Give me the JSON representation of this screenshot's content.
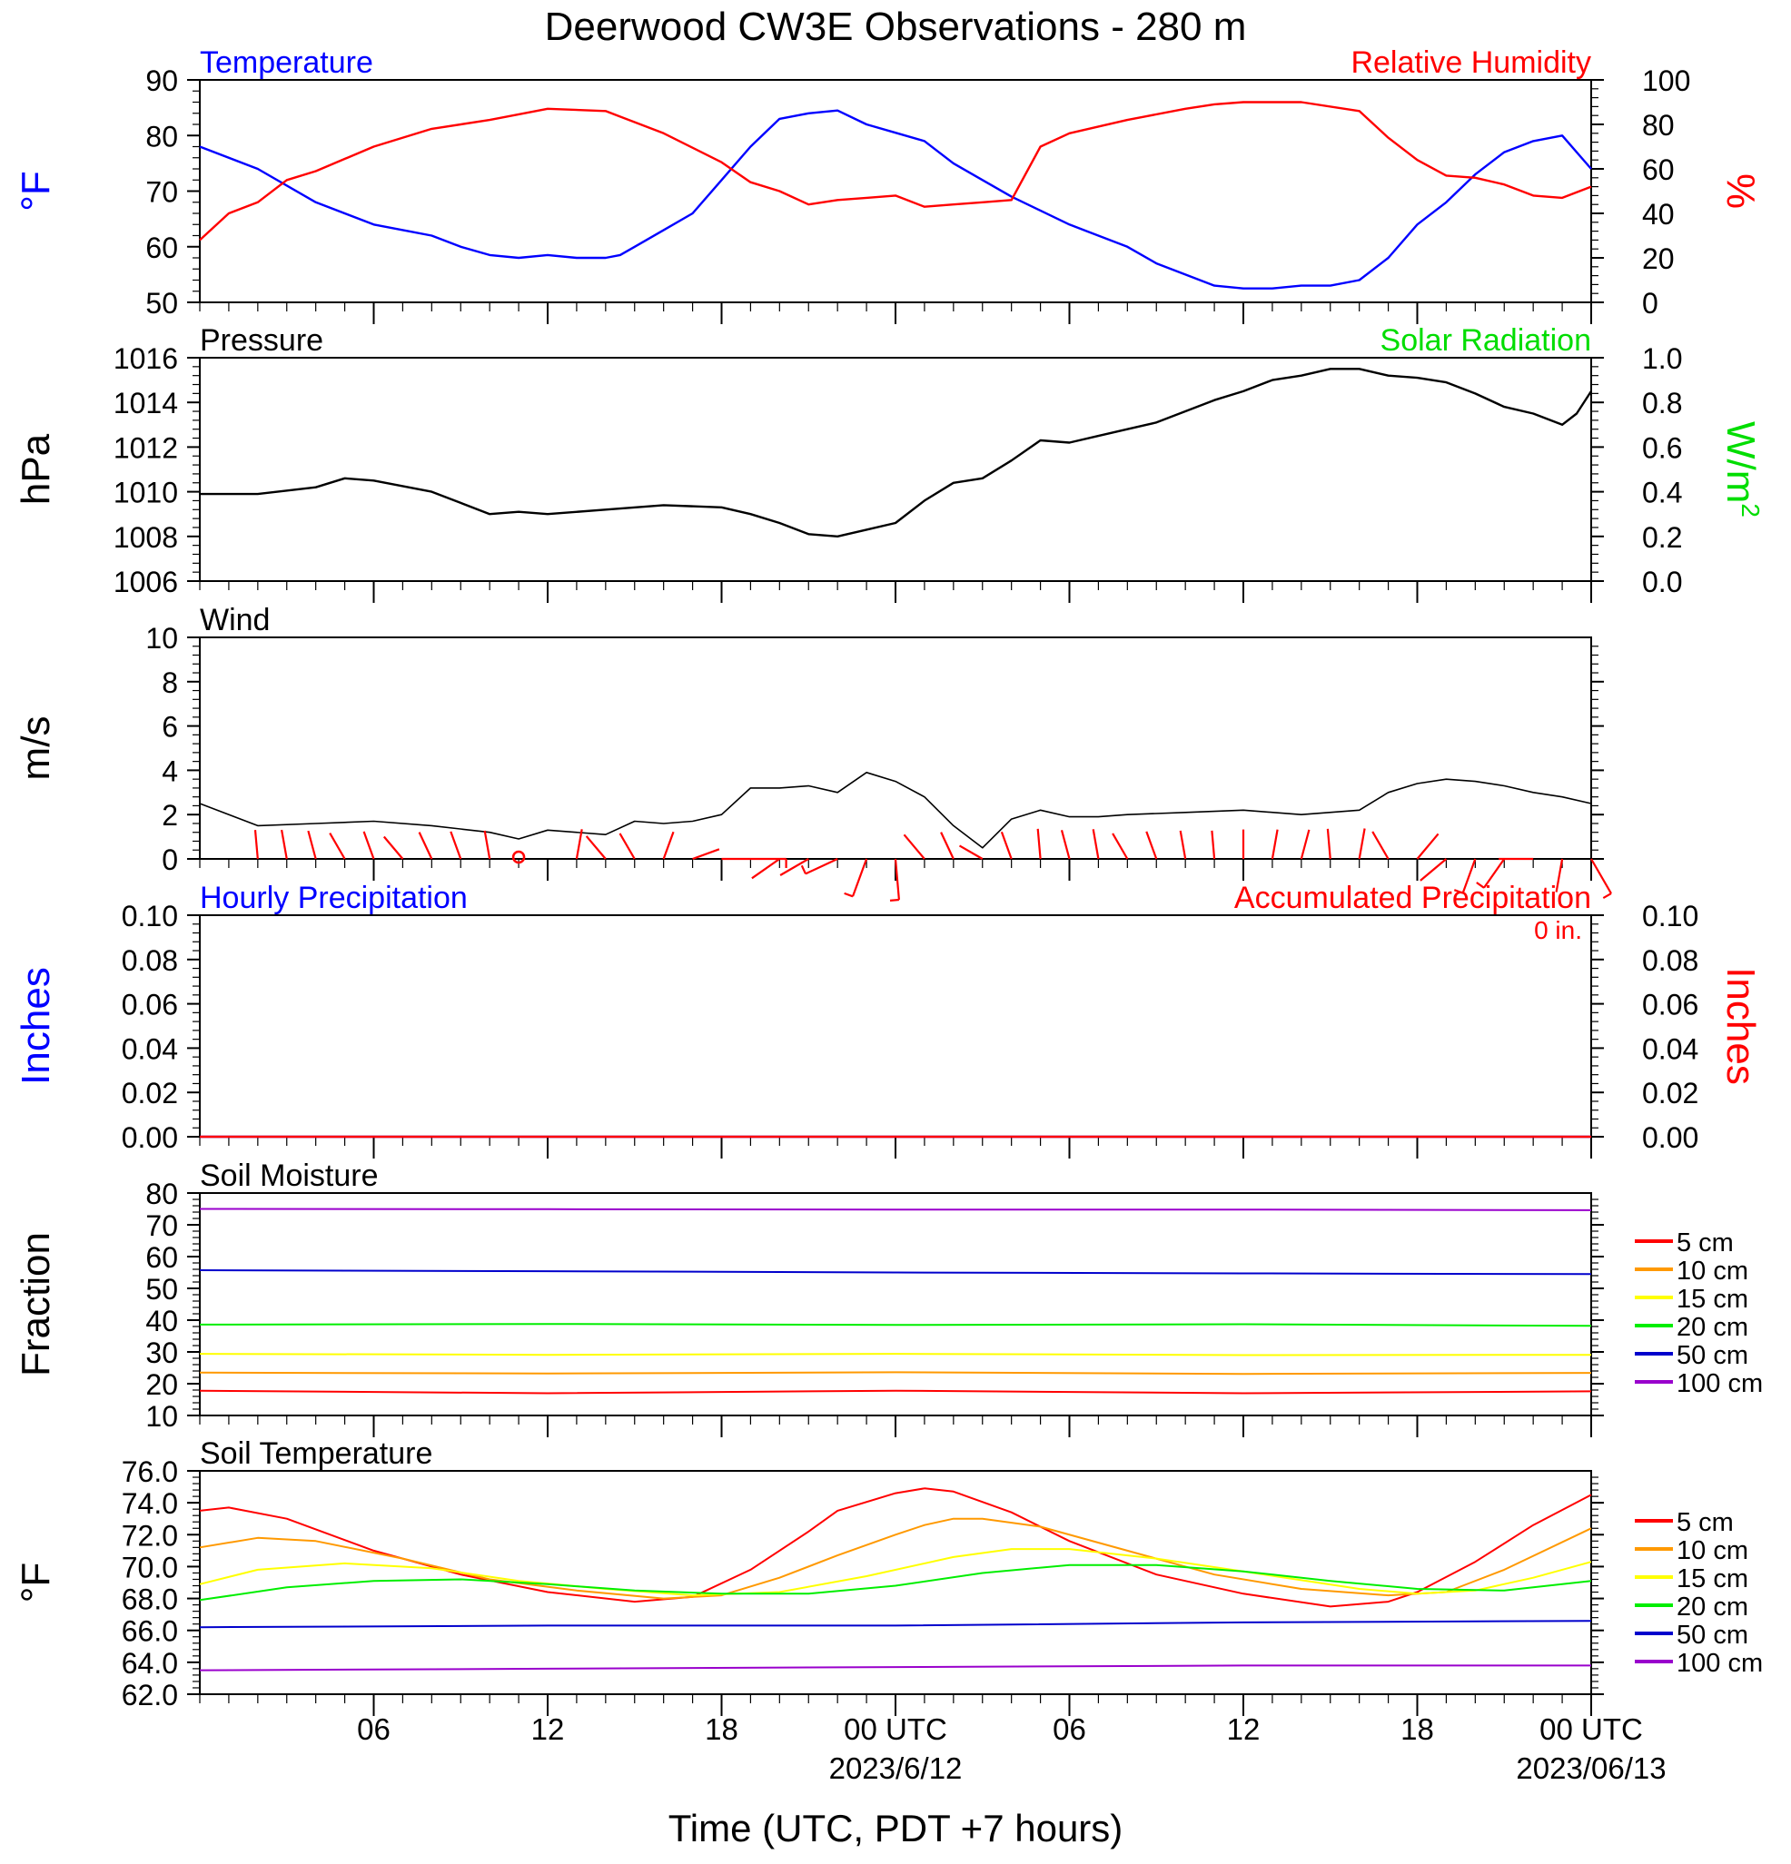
{
  "title": "Deerwood CW3E Observations - 280 m",
  "xaxis": {
    "label": "Time (UTC, PDT +7 hours)",
    "ticks": [
      {
        "hour": 6,
        "label": "06",
        "date": ""
      },
      {
        "hour": 12,
        "label": "12",
        "date": ""
      },
      {
        "hour": 18,
        "label": "18",
        "date": ""
      },
      {
        "hour": 24,
        "label": "00 UTC",
        "date": "2023/6/12"
      },
      {
        "hour": 30,
        "label": "06",
        "date": ""
      },
      {
        "hour": 36,
        "label": "12",
        "date": ""
      },
      {
        "hour": 42,
        "label": "18",
        "date": ""
      },
      {
        "hour": 48,
        "label": "00 UTC",
        "date": "2023/06/13"
      }
    ],
    "range_hours": [
      0,
      48
    ]
  },
  "colors": {
    "temperature": "#0000ff",
    "humidity": "#ff0000",
    "pressure": "#000000",
    "solar": "#00dd00",
    "wind": "#000000",
    "barbs": "#ff0000",
    "hourly_precip": "#0000ff",
    "accum_precip": "#ff0000",
    "depth_5": "#ff0000",
    "depth_10": "#ff9900",
    "depth_15": "#ffff00",
    "depth_20": "#00ee00",
    "depth_50": "#0000cc",
    "depth_100": "#9900cc"
  },
  "chart_data": [
    {
      "id": "temp-rh",
      "type": "line",
      "left_title": "Temperature",
      "right_title": "Relative Humidity",
      "ylabel": "°F",
      "ylabel_right": "%",
      "ylim": [
        50,
        90
      ],
      "ylim_right": [
        0,
        100
      ],
      "yticks": [
        "50",
        "60",
        "70",
        "80",
        "90"
      ],
      "yticks_right": [
        "0",
        "20",
        "40",
        "60",
        "80",
        "100"
      ],
      "series": [
        {
          "name": "Temperature",
          "axis": "left",
          "x": [
            0,
            2,
            4,
            6,
            8,
            9,
            10,
            11,
            12,
            13,
            14,
            14.5,
            15,
            16,
            17,
            18,
            19,
            20,
            21,
            22,
            23,
            24,
            25,
            26,
            27,
            28,
            30,
            32,
            33,
            34,
            35,
            36,
            37,
            38,
            39,
            40,
            41,
            42,
            43,
            44,
            45,
            46,
            47,
            48
          ],
          "y": [
            78,
            74,
            68,
            64,
            62,
            60,
            58.5,
            58,
            58.5,
            58,
            58,
            58.5,
            60,
            63,
            66,
            72,
            78,
            83,
            84,
            84.5,
            82,
            80.5,
            79,
            75,
            72,
            69,
            64,
            60,
            57,
            55,
            53,
            52.5,
            52.5,
            53,
            53,
            54,
            58,
            64,
            68,
            73,
            77,
            79,
            80,
            74
          ]
        },
        {
          "name": "Relative Humidity",
          "axis": "right",
          "x": [
            0,
            1,
            2,
            3,
            4,
            6,
            8,
            10,
            12,
            14,
            16,
            18,
            19,
            20,
            21,
            22,
            23,
            24,
            25,
            26,
            27,
            28,
            29,
            30,
            32,
            34,
            35,
            36,
            38,
            40,
            41,
            42,
            43,
            44,
            45,
            46,
            47,
            48
          ],
          "y": [
            28,
            40,
            45,
            55,
            59,
            70,
            78,
            82,
            87,
            86,
            76,
            63,
            54,
            50,
            44,
            46,
            47,
            48,
            43,
            44,
            45,
            46,
            70,
            76,
            82,
            87,
            89,
            90,
            90,
            86,
            74,
            64,
            57,
            56,
            53,
            48,
            47,
            52
          ]
        }
      ]
    },
    {
      "id": "pressure",
      "type": "line",
      "left_title": "Pressure",
      "right_title": "Solar Radiation",
      "ylabel": "hPa",
      "ylabel_right": "W/m",
      "ylabel_right_sup": "2",
      "ylim": [
        1006,
        1016
      ],
      "ylim_right": [
        0.0,
        1.0
      ],
      "yticks": [
        "1006",
        "1008",
        "1010",
        "1012",
        "1014",
        "1016"
      ],
      "yticks_right": [
        "0.0",
        "0.2",
        "0.4",
        "0.6",
        "0.8",
        "1.0"
      ],
      "series": [
        {
          "name": "Pressure",
          "axis": "left",
          "x": [
            0,
            2,
            4,
            5,
            6,
            8,
            9,
            10,
            11,
            12,
            14,
            16,
            18,
            19,
            20,
            21,
            22,
            23,
            24,
            25,
            26,
            27,
            28,
            29,
            30,
            31,
            32,
            33,
            34,
            35,
            36,
            37,
            38,
            39,
            40,
            41,
            42,
            43,
            44,
            45,
            46,
            47,
            47.5,
            48
          ],
          "y": [
            1009.9,
            1009.9,
            1010.2,
            1010.6,
            1010.5,
            1010,
            1009.5,
            1009,
            1009.1,
            1009,
            1009.2,
            1009.4,
            1009.3,
            1009,
            1008.6,
            1008.1,
            1008,
            1008.3,
            1008.6,
            1009.6,
            1010.4,
            1010.6,
            1011.4,
            1012.3,
            1012.2,
            1012.5,
            1012.8,
            1013.1,
            1013.6,
            1014.1,
            1014.5,
            1015,
            1015.2,
            1015.5,
            1015.5,
            1015.2,
            1015.1,
            1014.9,
            1014.4,
            1013.8,
            1013.5,
            1013,
            1013.5,
            1014.5
          ]
        }
      ]
    },
    {
      "id": "wind",
      "type": "line",
      "left_title": "Wind",
      "ylabel": "m/s",
      "ylim": [
        0,
        10
      ],
      "yticks": [
        "0",
        "2",
        "4",
        "6",
        "8",
        "10"
      ],
      "series": [
        {
          "name": "Wind",
          "axis": "left",
          "x": [
            0,
            2,
            4,
            6,
            8,
            10,
            11,
            12,
            14,
            15,
            16,
            17,
            18,
            19,
            20,
            21,
            22,
            23,
            24,
            25,
            26,
            27,
            28,
            29,
            30,
            31,
            32,
            34,
            36,
            38,
            40,
            41,
            42,
            43,
            44,
            45,
            46,
            47,
            48
          ],
          "y": [
            2.5,
            1.5,
            1.6,
            1.7,
            1.5,
            1.2,
            0.9,
            1.3,
            1.1,
            1.7,
            1.6,
            1.7,
            2,
            3.2,
            3.2,
            3.3,
            3,
            3.9,
            3.5,
            2.8,
            1.5,
            0.5,
            1.8,
            2.2,
            1.9,
            1.9,
            2.0,
            2.1,
            2.2,
            2,
            2.2,
            3,
            3.4,
            3.6,
            3.5,
            3.3,
            3,
            2.8,
            2.5
          ]
        }
      ]
    },
    {
      "id": "precip",
      "type": "line",
      "left_title": "Hourly Precipitation",
      "right_title": "Accumulated Precipitation",
      "accum_label": "0 in.",
      "ylabel": "Inches",
      "ylabel_right": "Inches",
      "ylim": [
        0,
        0.1
      ],
      "ylim_right": [
        0,
        0.1
      ],
      "yticks": [
        "0.00",
        "0.02",
        "0.04",
        "0.06",
        "0.08",
        "0.10"
      ],
      "yticks_right": [
        "0.00",
        "0.02",
        "0.04",
        "0.06",
        "0.08",
        "0.10"
      ],
      "series": [
        {
          "name": "Hourly Precipitation",
          "axis": "left",
          "x": [
            0,
            48
          ],
          "y": [
            0,
            0
          ]
        },
        {
          "name": "Accumulated Precipitation",
          "axis": "right",
          "x": [
            0,
            48
          ],
          "y": [
            0,
            0
          ]
        }
      ]
    },
    {
      "id": "soil-moisture",
      "type": "line",
      "left_title": "Soil Moisture",
      "ylabel": "Fraction",
      "ylim": [
        10,
        80
      ],
      "yticks": [
        "10",
        "20",
        "30",
        "40",
        "50",
        "60",
        "70",
        "80"
      ],
      "series": [
        {
          "name": "5 cm",
          "x": [
            0,
            12,
            24,
            36,
            48
          ],
          "y": [
            17.8,
            17,
            17.8,
            17,
            17.6
          ]
        },
        {
          "name": "10 cm",
          "x": [
            0,
            12,
            24,
            36,
            48
          ],
          "y": [
            23.5,
            23.2,
            23.6,
            23.1,
            23.4
          ]
        },
        {
          "name": "15 cm",
          "x": [
            0,
            12,
            24,
            36,
            48
          ],
          "y": [
            29.4,
            29.1,
            29.4,
            29,
            29.1
          ]
        },
        {
          "name": "20 cm",
          "x": [
            0,
            12,
            24,
            36,
            48
          ],
          "y": [
            38.6,
            38.8,
            38.5,
            38.7,
            38.2
          ]
        },
        {
          "name": "50 cm",
          "x": [
            0,
            12,
            24,
            36,
            48
          ],
          "y": [
            55.7,
            55.4,
            55,
            54.7,
            54.5
          ]
        },
        {
          "name": "100 cm",
          "x": [
            0,
            12,
            24,
            36,
            48
          ],
          "y": [
            75,
            74.9,
            74.8,
            74.8,
            74.6
          ]
        }
      ]
    },
    {
      "id": "soil-temp",
      "type": "line",
      "left_title": "Soil Temperature",
      "ylabel": "°F",
      "ylim": [
        62,
        76
      ],
      "yticks": [
        "62.0",
        "64.0",
        "66.0",
        "68.0",
        "70.0",
        "72.0",
        "74.0",
        "76.0"
      ],
      "series": [
        {
          "name": "5 cm",
          "x": [
            0,
            1,
            3,
            6,
            9,
            12,
            15,
            17,
            19,
            21,
            22,
            24,
            25,
            26,
            28,
            30,
            33,
            36,
            39,
            41,
            42,
            44,
            46,
            48
          ],
          "y": [
            73.5,
            73.7,
            73,
            71,
            69.5,
            68.4,
            67.8,
            68.1,
            69.8,
            72.2,
            73.5,
            74.6,
            74.9,
            74.7,
            73.4,
            71.6,
            69.5,
            68.3,
            67.5,
            67.8,
            68.4,
            70.3,
            72.6,
            74.5
          ]
        },
        {
          "name": "10 cm",
          "x": [
            0,
            2,
            4,
            7,
            10,
            13,
            16,
            18,
            20,
            22,
            24,
            25,
            26,
            27,
            29,
            32,
            35,
            38,
            41,
            43,
            45,
            48
          ],
          "y": [
            71.2,
            71.8,
            71.6,
            70.5,
            69.2,
            68.5,
            68,
            68.2,
            69.3,
            70.7,
            72,
            72.6,
            73,
            73,
            72.5,
            71,
            69.5,
            68.6,
            68.2,
            68.4,
            69.8,
            72.4
          ]
        },
        {
          "name": "15 cm",
          "x": [
            0,
            2,
            5,
            8,
            11,
            14,
            17,
            20,
            23,
            26,
            28,
            30,
            33,
            36,
            40,
            42,
            44,
            46,
            48
          ],
          "y": [
            68.9,
            69.8,
            70.2,
            69.9,
            69.1,
            68.6,
            68.2,
            68.4,
            69.4,
            70.6,
            71.1,
            71.1,
            70.5,
            69.7,
            68.6,
            68.3,
            68.5,
            69.3,
            70.3
          ]
        },
        {
          "name": "20 cm",
          "x": [
            0,
            3,
            6,
            9,
            12,
            15,
            18,
            21,
            24,
            27,
            30,
            33,
            36,
            39,
            42,
            45,
            48
          ],
          "y": [
            67.9,
            68.7,
            69.1,
            69.2,
            68.9,
            68.5,
            68.3,
            68.3,
            68.8,
            69.6,
            70.1,
            70.1,
            69.7,
            69.1,
            68.6,
            68.5,
            69.1
          ]
        },
        {
          "name": "50 cm",
          "x": [
            0,
            12,
            24,
            36,
            48
          ],
          "y": [
            66.2,
            66.3,
            66.3,
            66.5,
            66.6
          ]
        },
        {
          "name": "100 cm",
          "x": [
            0,
            12,
            24,
            36,
            48
          ],
          "y": [
            63.5,
            63.6,
            63.7,
            63.8,
            63.8
          ]
        }
      ]
    }
  ],
  "wind_barbs": [
    {
      "hour": 2,
      "dir": 355,
      "spd": 1.5
    },
    {
      "hour": 3,
      "dir": 350,
      "spd": 1.6
    },
    {
      "hour": 4,
      "dir": 345,
      "spd": 1.5
    },
    {
      "hour": 5,
      "dir": 330,
      "spd": 1.7
    },
    {
      "hour": 6,
      "dir": 340,
      "spd": 1.5
    },
    {
      "hour": 7,
      "dir": 320,
      "spd": 1.5
    },
    {
      "hour": 8,
      "dir": 335,
      "spd": 1.6
    },
    {
      "hour": 9,
      "dir": 340,
      "spd": 1.5
    },
    {
      "hour": 10,
      "dir": 350,
      "spd": 1.4
    },
    {
      "hour": 11,
      "calm": true
    },
    {
      "hour": 13,
      "dir": 10,
      "spd": 1.8
    },
    {
      "hour": 14,
      "dir": 320,
      "spd": 1.7
    },
    {
      "hour": 15,
      "dir": 330,
      "spd": 1.6
    },
    {
      "hour": 16,
      "dir": 20,
      "spd": 1.4
    },
    {
      "hour": 17,
      "dir": 70,
      "spd": 1.3
    },
    {
      "hour": 18,
      "dir": 90,
      "spd": 1.5
    },
    {
      "hour": 19,
      "dir": 90,
      "spd": 3.3
    },
    {
      "hour": 20,
      "dir": 235,
      "spd": 2.8
    },
    {
      "hour": 21,
      "dir": 240,
      "spd": 2.5
    },
    {
      "hour": 22,
      "dir": 245,
      "spd": 3.2
    },
    {
      "hour": 23,
      "dir": 200,
      "spd": 4.5
    },
    {
      "hour": 24,
      "dir": 175,
      "spd": 4.8
    },
    {
      "hour": 25,
      "dir": 320,
      "spd": 2.2
    },
    {
      "hour": 26,
      "dir": 335,
      "spd": 1.6
    },
    {
      "hour": 27,
      "dir": 300,
      "spd": 0.8
    },
    {
      "hour": 28,
      "dir": 340,
      "spd": 1.4
    },
    {
      "hour": 29,
      "dir": 355,
      "spd": 1.8
    },
    {
      "hour": 30,
      "dir": 345,
      "spd": 1.7
    },
    {
      "hour": 31,
      "dir": 350,
      "spd": 1.8
    },
    {
      "hour": 32,
      "dir": 330,
      "spd": 1.6
    },
    {
      "hour": 33,
      "dir": 340,
      "spd": 1.5
    },
    {
      "hour": 34,
      "dir": 350,
      "spd": 1.4
    },
    {
      "hour": 35,
      "dir": 355,
      "spd": 1.3
    },
    {
      "hour": 36,
      "dir": 360,
      "spd": 1.6
    },
    {
      "hour": 37,
      "dir": 10,
      "spd": 1.7
    },
    {
      "hour": 38,
      "dir": 15,
      "spd": 1.8
    },
    {
      "hour": 39,
      "dir": 355,
      "spd": 1.8
    },
    {
      "hour": 40,
      "dir": 10,
      "spd": 2.0
    },
    {
      "hour": 41,
      "dir": 330,
      "spd": 2.2
    },
    {
      "hour": 42,
      "dir": 40,
      "spd": 2.5
    },
    {
      "hour": 43,
      "dir": 230,
      "spd": 2.8
    },
    {
      "hour": 44,
      "dir": 200,
      "spd": 3.5
    },
    {
      "hour": 45,
      "dir": 215,
      "spd": 3.2
    },
    {
      "hour": 46,
      "dir": 270,
      "spd": 3.0
    },
    {
      "hour": 47,
      "dir": 190,
      "spd": 2.8
    },
    {
      "hour": 48,
      "dir": 150,
      "spd": 4.5
    }
  ],
  "legend": {
    "soil_moisture": [
      "5 cm",
      "10 cm",
      "15 cm",
      "20 cm",
      "50 cm",
      "100 cm"
    ],
    "soil_temperature": [
      "5 cm",
      "10 cm",
      "15 cm",
      "20 cm",
      "50 cm",
      "100 cm"
    ]
  }
}
